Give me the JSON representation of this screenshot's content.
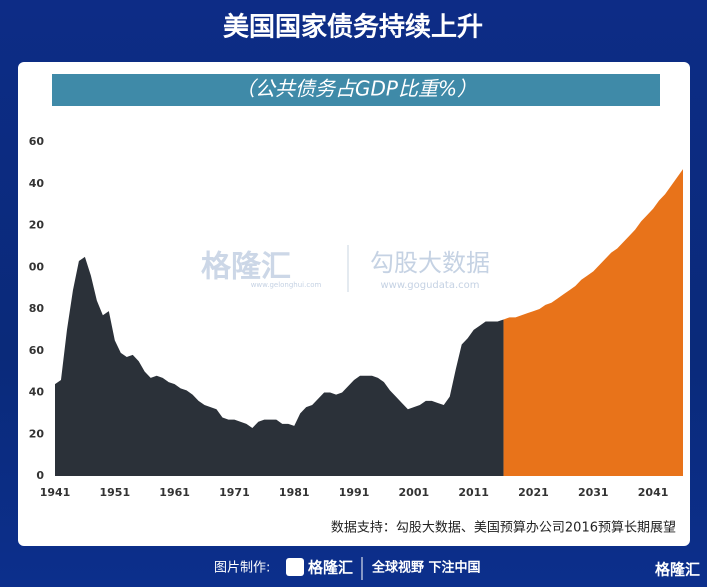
{
  "title": "美国国家债务持续上升",
  "watermark": {
    "brand": "格隆汇",
    "brand_url": "www.gelonghui.com",
    "partner": "勾股大数据",
    "partner_url": "www.gogudata.com"
  },
  "source": "数据支持：勾股大数据、美国预算办公司2016预算长期展望",
  "footer": {
    "made_by": "图片制作:",
    "brand": "格隆汇",
    "slogan": "全球视野 下注中国",
    "corner_brand": "格隆汇"
  },
  "chart_data": {
    "type": "area",
    "subtitle": "（公共债务占GDP比重%）",
    "xlim": [
      1941,
      2046
    ],
    "xticks": [
      1941,
      1951,
      1961,
      1971,
      1981,
      1991,
      2001,
      2011,
      2021,
      2031,
      2041
    ],
    "ylim": [
      0,
      160
    ],
    "yticks": [
      0,
      20,
      40,
      60,
      80,
      {
        "value": 100,
        "label": "00"
      },
      {
        "value": 120,
        "label": "20"
      },
      {
        "value": 140,
        "label": "40"
      },
      {
        "value": 160,
        "label": "60"
      }
    ],
    "grid": false,
    "series": [
      {
        "color": "#2b3139",
        "x": [
          1941,
          1942,
          1943,
          1944,
          1945,
          1946,
          1947,
          1948,
          1949,
          1950,
          1951,
          1952,
          1953,
          1954,
          1955,
          1956,
          1957,
          1958,
          1959,
          1960,
          1961,
          1962,
          1963,
          1964,
          1965,
          1966,
          1967,
          1968,
          1969,
          1970,
          1971,
          1972,
          1973,
          1974,
          1975,
          1976,
          1977,
          1978,
          1979,
          1980,
          1981,
          1982,
          1983,
          1984,
          1985,
          1986,
          1987,
          1988,
          1989,
          1990,
          1991,
          1992,
          1993,
          1994,
          1995,
          1996,
          1997,
          1998,
          1999,
          2000,
          2001,
          2002,
          2003,
          2004,
          2005,
          2006,
          2007,
          2008,
          2009,
          2010,
          2011,
          2012,
          2013,
          2014,
          2015,
          2016
        ],
        "values": [
          44,
          46,
          70,
          89,
          103,
          105,
          96,
          84,
          77,
          79,
          65,
          59,
          57,
          58,
          55,
          50,
          47,
          48,
          47,
          45,
          44,
          42,
          41,
          39,
          36,
          34,
          33,
          32,
          28,
          27,
          27,
          26,
          25,
          23,
          26,
          27,
          27,
          27,
          25,
          25,
          24,
          30,
          33,
          34,
          37,
          40,
          40,
          39,
          40,
          43,
          46,
          48,
          48,
          48,
          47,
          45,
          41,
          38,
          35,
          32,
          33,
          34,
          36,
          36,
          35,
          34,
          38,
          51,
          63,
          66,
          70,
          72,
          74,
          74,
          74,
          75
        ]
      },
      {
        "color": "#e8731a",
        "x": [
          2016,
          2017,
          2018,
          2019,
          2020,
          2021,
          2022,
          2023,
          2024,
          2025,
          2026,
          2027,
          2028,
          2029,
          2030,
          2031,
          2032,
          2033,
          2034,
          2035,
          2036,
          2037,
          2038,
          2039,
          2040,
          2041,
          2042,
          2043,
          2044,
          2045,
          2046
        ],
        "values": [
          75,
          76,
          76,
          77,
          78,
          79,
          80,
          82,
          83,
          85,
          87,
          89,
          91,
          94,
          96,
          98,
          101,
          104,
          107,
          109,
          112,
          115,
          118,
          122,
          125,
          128,
          132,
          135,
          139,
          143,
          147
        ]
      }
    ]
  }
}
